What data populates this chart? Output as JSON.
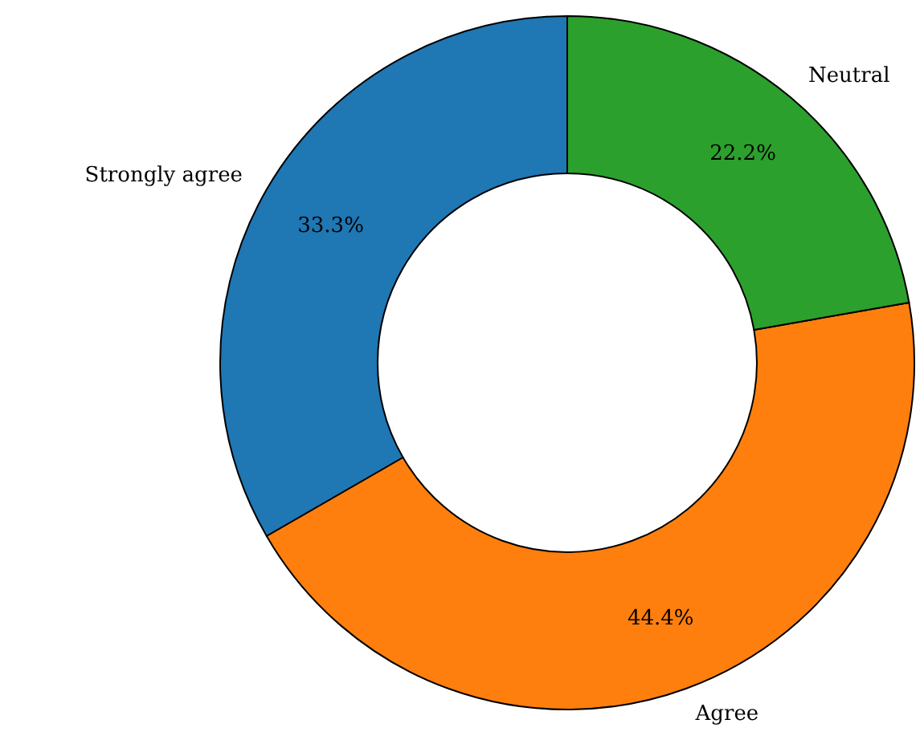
{
  "chart_data": {
    "type": "donut",
    "categories": [
      "Strongly agree",
      "Agree",
      "Neutral"
    ],
    "values": [
      33.3,
      44.4,
      22.2
    ],
    "colors": [
      "#1f77b4",
      "#ff7f0e",
      "#2ca02c"
    ],
    "value_labels": [
      "33.3%",
      "44.4%",
      "22.2%"
    ],
    "legend": false
  }
}
